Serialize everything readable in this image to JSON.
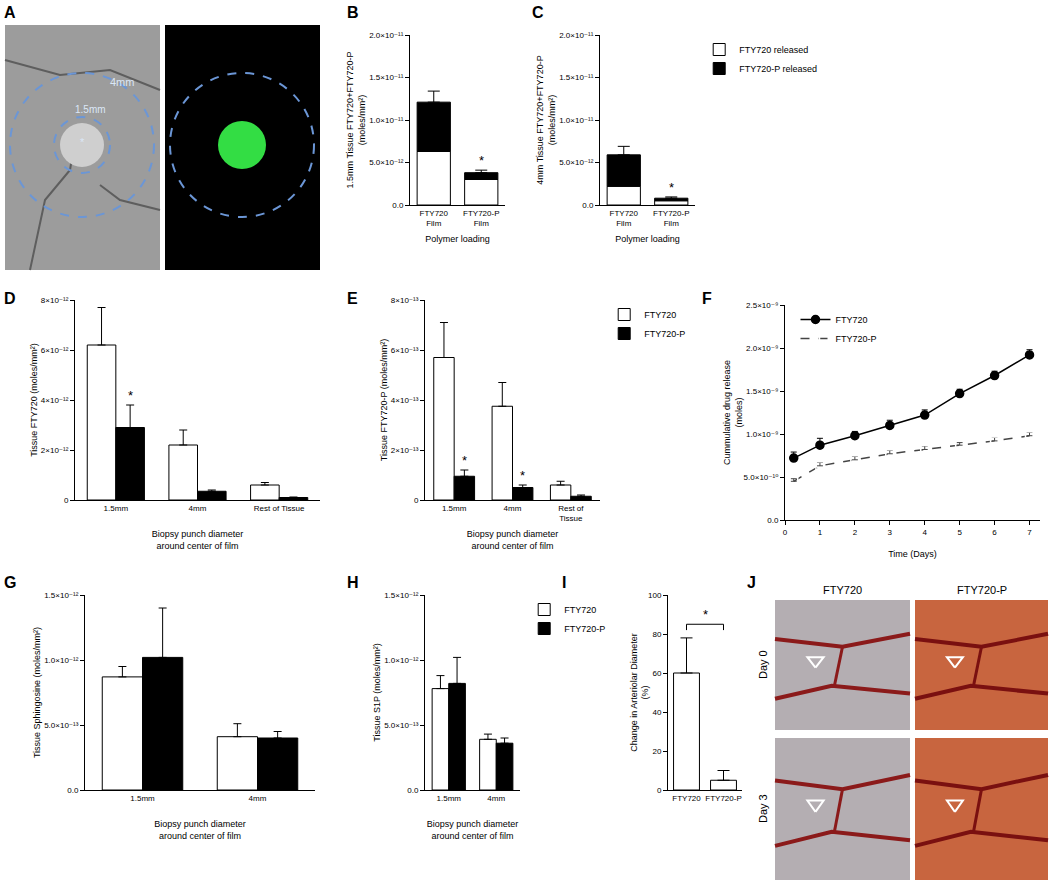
{
  "chart_data": [
    {
      "panel": "A",
      "type": "image",
      "labels": [
        "4mm",
        "1.5mm",
        "*"
      ]
    },
    {
      "panel": "B",
      "type": "bar",
      "stacked": true,
      "grid": false,
      "legend": false,
      "categories": [
        "FTY720 Film",
        "FTY720-P Film"
      ],
      "series": [
        {
          "name": "FTY720 released",
          "color": "#ffffff",
          "values": [
            6.3e-12,
            3e-12
          ]
        },
        {
          "name": "FTY720-P released",
          "color": "#000000",
          "values": [
            5.8e-12,
            8e-13
          ]
        }
      ],
      "errors": [
        1.3e-12,
        3e-13
      ],
      "x_label": "Polymer loading",
      "y_label": "1.5mm Tissue FTY720+FTY720-P (moles/mm²)",
      "ylim": [
        0,
        2e-11
      ],
      "yticks": [
        {
          "value": 0,
          "label": "0.0"
        },
        {
          "value": 5e-12,
          "label": "5.0×10⁻¹²"
        },
        {
          "value": 1e-11,
          "label": "1.0×10⁻¹¹"
        },
        {
          "value": 1.5e-11,
          "label": "1.5×10⁻¹¹"
        },
        {
          "value": 2e-11,
          "label": "2.0×10⁻¹¹"
        }
      ],
      "annotations": [
        {
          "text": "*",
          "category": "FTY720-P Film"
        }
      ]
    },
    {
      "panel": "C",
      "type": "bar",
      "stacked": true,
      "grid": false,
      "legend": "right",
      "categories": [
        "FTY720 Film",
        "FTY720-P Film"
      ],
      "series": [
        {
          "name": "FTY720 released",
          "color": "#ffffff",
          "values": [
            2.2e-12,
            5e-13
          ]
        },
        {
          "name": "FTY720-P released",
          "color": "#000000",
          "values": [
            3.7e-12,
            3e-13
          ]
        }
      ],
      "errors": [
        1e-12,
        1.5e-13
      ],
      "x_label": "Polymer loading",
      "y_label": "4mm Tissue FTY720+FTY720-P (moles/mm²)",
      "ylim": [
        0,
        2e-11
      ],
      "yticks": [
        {
          "value": 0,
          "label": "0.0"
        },
        {
          "value": 5e-12,
          "label": "5.0×10⁻¹²"
        },
        {
          "value": 1e-11,
          "label": "1.0×10⁻¹¹"
        },
        {
          "value": 1.5e-11,
          "label": "1.5×10⁻¹¹"
        },
        {
          "value": 2e-11,
          "label": "2.0×10⁻¹¹"
        }
      ],
      "annotations": [
        {
          "text": "*",
          "category": "FTY720-P Film"
        }
      ]
    },
    {
      "panel": "D",
      "type": "bar",
      "grid": false,
      "legend": false,
      "categories": [
        "1.5mm",
        "4mm",
        "Rest of Tissue"
      ],
      "series": [
        {
          "name": "FTY720",
          "color": "#ffffff",
          "values": [
            6.2e-12,
            2.2e-12,
            6e-13
          ],
          "errors": [
            1.5e-12,
            6e-13,
            1e-13
          ]
        },
        {
          "name": "FTY720-P",
          "color": "#000000",
          "values": [
            2.9e-12,
            3.5e-13,
            1e-13
          ],
          "errors": [
            9e-13,
            5e-14,
            2e-14
          ]
        }
      ],
      "x_label": "Biopsy punch diameter around center of film",
      "y_label": "Tissue FTY720 (moles/mm²)",
      "ylim": [
        0,
        8e-12
      ],
      "yticks": [
        0,
        {
          "value": 2e-12,
          "label": "2×10⁻¹²"
        },
        {
          "value": 4e-12,
          "label": "4×10⁻¹²"
        },
        {
          "value": 6e-12,
          "label": "6×10⁻¹²"
        },
        {
          "value": 8e-12,
          "label": "8×10⁻¹²"
        }
      ],
      "annotations": [
        {
          "text": "*",
          "category": "1.5mm",
          "series": "FTY720-P"
        }
      ]
    },
    {
      "panel": "E",
      "type": "bar",
      "grid": false,
      "legend": "right",
      "categories": [
        "1.5mm",
        "4mm",
        "Rest of Tissue"
      ],
      "series": [
        {
          "name": "FTY720",
          "color": "#ffffff",
          "values": [
            5.7e-13,
            3.75e-13,
            6e-14
          ],
          "errors": [
            1.4e-13,
            9.5e-14,
            1.5e-14
          ]
        },
        {
          "name": "FTY720-P",
          "color": "#000000",
          "values": [
            9.5e-14,
            5e-14,
            1.5e-14
          ],
          "errors": [
            2.5e-14,
            1e-14,
            5e-15
          ]
        }
      ],
      "x_label": "Biopsy punch diameter around center of film",
      "y_label": "Tissue FTY720-P (moles/mm²)",
      "ylim": [
        0,
        8e-13
      ],
      "yticks": [
        0,
        {
          "value": 2e-13,
          "label": "2×10⁻¹³"
        },
        {
          "value": 4e-13,
          "label": "4×10⁻¹³"
        },
        {
          "value": 6e-13,
          "label": "6×10⁻¹³"
        },
        {
          "value": 8e-13,
          "label": "8×10⁻¹³"
        }
      ],
      "annotations": [
        {
          "text": "*",
          "category": "1.5mm",
          "series": "FTY720-P"
        },
        {
          "text": "*",
          "category": "4mm",
          "series": "FTY720-P"
        }
      ]
    },
    {
      "panel": "F",
      "type": "line",
      "grid": false,
      "legend": "top left",
      "x": [
        0.25,
        1,
        2,
        3,
        4,
        5,
        6,
        7
      ],
      "series": [
        {
          "name": "FTY720",
          "color": "#000000",
          "marker": "circle",
          "line_style": "solid",
          "values": [
            7.2e-10,
            8.7e-10,
            9.8e-10,
            1.1e-09,
            1.22e-09,
            1.47e-09,
            1.68e-09,
            1.92e-09
          ],
          "errors": [
            7e-11,
            8e-11,
            5e-11,
            6e-11,
            6e-11,
            5e-11,
            5e-11,
            6e-11
          ]
        },
        {
          "name": "FTY720-P",
          "color": "#444444",
          "marker": "square-open",
          "line_style": "dash",
          "values": [
            4.5e-10,
            6.3e-10,
            7e-10,
            7.7e-10,
            8.2e-10,
            8.7e-10,
            9.2e-10,
            9.8e-10
          ],
          "errors": [
            3e-11,
            4e-11,
            4e-11,
            4e-11,
            4e-11,
            3e-11,
            4e-11,
            4e-11
          ]
        }
      ],
      "x_label": "Time (Days)",
      "y_label": "Cummulative drug release (moles)",
      "xlim": [
        0,
        7.3
      ],
      "xticks": [
        0,
        1,
        2,
        3,
        4,
        5,
        6,
        7
      ],
      "ylim": [
        0,
        2.5e-09
      ],
      "yticks": [
        {
          "value": 0,
          "label": "0.0"
        },
        {
          "value": 5e-10,
          "label": "5.0×10⁻¹⁰"
        },
        {
          "value": 1e-09,
          "label": "1.0×10⁻⁹"
        },
        {
          "value": 1.5e-09,
          "label": "1.5×10⁻⁹"
        },
        {
          "value": 2e-09,
          "label": "2.0×10⁻⁹"
        },
        {
          "value": 2.5e-09,
          "label": "2.5×10⁻⁹"
        }
      ]
    },
    {
      "panel": "G",
      "type": "bar",
      "grid": false,
      "legend": false,
      "categories": [
        "1.5mm",
        "4mm"
      ],
      "series": [
        {
          "name": "FTY720",
          "color": "#ffffff",
          "values": [
            8.7e-13,
            4.1e-13
          ],
          "errors": [
            8e-14,
            1e-13
          ]
        },
        {
          "name": "FTY720-P",
          "color": "#000000",
          "values": [
            1.02e-12,
            4e-13
          ],
          "errors": [
            3.8e-13,
            5e-14
          ]
        }
      ],
      "x_label": "Biopsy punch diameter around center of film",
      "y_label": "Tissue Sphingosine (moles/mm²)",
      "ylim": [
        0,
        1.5e-12
      ],
      "yticks": [
        {
          "value": 0,
          "label": "0.0"
        },
        {
          "value": 5e-13,
          "label": "5.0×10⁻¹³"
        },
        {
          "value": 1e-12,
          "label": "1.0×10⁻¹²"
        },
        {
          "value": 1.5e-12,
          "label": "1.5×10⁻¹²"
        }
      ]
    },
    {
      "panel": "H",
      "type": "bar",
      "grid": false,
      "legend": "right",
      "categories": [
        "1.5mm",
        "4mm"
      ],
      "series": [
        {
          "name": "FTY720",
          "color": "#ffffff",
          "values": [
            7.8e-13,
            3.9e-13
          ],
          "errors": [
            1e-13,
            4e-14
          ]
        },
        {
          "name": "FTY720-P",
          "color": "#000000",
          "values": [
            8.2e-13,
            3.6e-13
          ],
          "errors": [
            2e-13,
            4e-14
          ]
        }
      ],
      "x_label": "Biopsy punch diameter around center of film",
      "y_label": "Tissue S1P (moles/mm²)",
      "ylim": [
        0,
        1.5e-12
      ],
      "yticks": [
        {
          "value": 0,
          "label": "0.0"
        },
        {
          "value": 5e-13,
          "label": "5.0×10⁻¹³"
        },
        {
          "value": 1e-12,
          "label": "1.0×10⁻¹²"
        },
        {
          "value": 1.5e-12,
          "label": "1.5×10⁻¹²"
        }
      ]
    },
    {
      "panel": "I",
      "type": "bar",
      "grid": false,
      "legend": false,
      "categories": [
        "FTY720",
        "FTY720-P"
      ],
      "values": [
        60,
        5
      ],
      "errors": [
        18,
        5
      ],
      "color": "#ffffff",
      "y_label": "Change in Arteriolar Diameter (%)",
      "ylim": [
        0,
        100
      ],
      "yticks": [
        0,
        20,
        40,
        60,
        80,
        100
      ],
      "annotations": [
        {
          "text": "*",
          "between": [
            "FTY720",
            "FTY720-P"
          ]
        }
      ]
    },
    {
      "panel": "J",
      "type": "image",
      "columns": [
        "FTY720",
        "FTY720-P"
      ],
      "rows": [
        "Day 0",
        "Day 3"
      ]
    }
  ]
}
